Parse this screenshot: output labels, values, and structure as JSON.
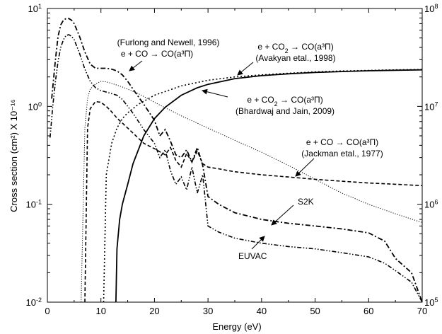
{
  "chart_data": {
    "type": "line",
    "xlabel": "Energy (eV)",
    "ylabel": "Cross section (cm²) X 10⁻¹⁶",
    "xlim": [
      0,
      70
    ],
    "ylim": [
      0.01,
      10
    ],
    "y_scale": "log",
    "y2lim": [
      100000,
      100000000
    ],
    "y2_scale": "log",
    "grid": false,
    "x_ticks": [
      "0",
      "10",
      "20",
      "30",
      "40",
      "50",
      "60",
      "70"
    ],
    "y_ticks": [
      {
        "base": "10",
        "exp": "-2",
        "value": 0.01
      },
      {
        "base": "10",
        "exp": "-1",
        "value": 0.1
      },
      {
        "base": "10",
        "exp": "0",
        "value": 1
      },
      {
        "base": "10",
        "exp": "1",
        "value": 10
      }
    ],
    "y2_ticks": [
      {
        "base": "10",
        "exp": "5",
        "value": 100000
      },
      {
        "base": "10",
        "exp": "6",
        "value": 1000000
      },
      {
        "base": "10",
        "exp": "7",
        "value": 10000000
      },
      {
        "base": "10",
        "exp": "8",
        "value": 100000000
      }
    ],
    "series": [
      {
        "label_lines": [
          "(Furlong and Newell, 1996)",
          "e + CO → CO(a³Π)"
        ],
        "style": "dotted-fine",
        "x": [
          6.3,
          7,
          7.5,
          8,
          9,
          10,
          11,
          12,
          14,
          17,
          20,
          25,
          30,
          35,
          40,
          45,
          50,
          55,
          60,
          65,
          70
        ],
        "y": [
          0.01,
          0.6,
          1.2,
          1.5,
          1.7,
          1.8,
          1.78,
          1.72,
          1.58,
          1.35,
          1.1,
          0.8,
          0.6,
          0.45,
          0.34,
          0.25,
          0.18,
          0.13,
          0.1,
          0.08,
          0.065
        ]
      },
      {
        "label_lines": [
          "e + CO₂ → CO(a³Π)",
          "(Avakyan etal., 1998)"
        ],
        "style": "dotted",
        "x": [
          10.5,
          11,
          12,
          13,
          14,
          15,
          17,
          20,
          25,
          30,
          35,
          40,
          45,
          50,
          55,
          60,
          65,
          70
        ],
        "y": [
          0.01,
          0.2,
          0.42,
          0.6,
          0.75,
          0.86,
          1.05,
          1.3,
          1.62,
          1.85,
          2.0,
          2.1,
          2.18,
          2.25,
          2.3,
          2.33,
          2.36,
          2.38
        ]
      },
      {
        "label_lines": [
          "e + CO₂ → CO(a³Π)",
          "(Bhardwaj and Jain, 2009)"
        ],
        "style": "solid",
        "x": [
          12.8,
          13,
          13.5,
          14,
          15,
          16,
          18,
          20,
          22,
          25,
          28,
          30,
          35,
          40,
          45,
          50,
          55,
          60,
          65,
          70
        ],
        "y": [
          0.01,
          0.035,
          0.07,
          0.1,
          0.16,
          0.26,
          0.5,
          0.75,
          0.98,
          1.3,
          1.55,
          1.68,
          1.92,
          2.06,
          2.15,
          2.22,
          2.27,
          2.31,
          2.34,
          2.36
        ]
      },
      {
        "label_lines": [
          "e + CO → CO(a³Π)",
          "(Jackman etal., 1977)"
        ],
        "style": "dashed",
        "x": [
          7,
          7.5,
          8,
          9,
          10,
          11,
          12,
          13,
          15,
          18,
          20,
          22,
          23,
          24,
          25,
          26,
          27,
          28,
          29,
          30,
          32,
          35,
          40,
          45,
          50,
          55,
          60,
          65,
          70
        ],
        "y": [
          0.01,
          0.6,
          0.95,
          1.12,
          1.1,
          1.0,
          0.88,
          0.76,
          0.6,
          0.42,
          0.37,
          0.32,
          0.38,
          0.28,
          0.24,
          0.33,
          0.27,
          0.35,
          0.26,
          0.24,
          0.23,
          0.215,
          0.2,
          0.19,
          0.18,
          0.172,
          0.165,
          0.16,
          0.155
        ]
      },
      {
        "name": "S2K",
        "style": "dash-dot",
        "x": [
          0.8,
          1.5,
          2,
          2.5,
          3,
          3.5,
          4,
          4.5,
          5,
          6,
          7,
          8,
          9,
          10,
          11,
          12,
          13,
          14,
          15,
          16,
          18,
          20,
          21,
          22,
          23,
          24,
          25,
          26,
          27,
          28,
          29,
          30,
          32,
          35,
          40,
          45,
          50,
          55,
          60,
          63,
          65,
          68,
          70
        ],
        "y": [
          1.2,
          3.0,
          5.2,
          6.8,
          7.6,
          7.9,
          7.9,
          7.6,
          7.0,
          5.2,
          3.6,
          2.7,
          2.45,
          2.45,
          2.45,
          2.4,
          2.3,
          2.1,
          1.8,
          1.5,
          1.05,
          0.72,
          0.5,
          0.58,
          0.44,
          0.32,
          0.3,
          0.36,
          0.27,
          0.38,
          0.25,
          0.12,
          0.1,
          0.082,
          0.07,
          0.064,
          0.06,
          0.056,
          0.051,
          0.042,
          0.028,
          0.02,
          0.01
        ]
      },
      {
        "name": "EUVAC",
        "style": "dash-dot-dot",
        "x": [
          0.5,
          1,
          1.5,
          2,
          2.5,
          3,
          3.5,
          4,
          4.5,
          5,
          6,
          7,
          8,
          9,
          10,
          11,
          12,
          13,
          14,
          15,
          16,
          18,
          20,
          21,
          22,
          23,
          24,
          25,
          26,
          27,
          28,
          29,
          30,
          32,
          35,
          40,
          45,
          50,
          55,
          60,
          63,
          65,
          68,
          70
        ],
        "y": [
          0.48,
          1.0,
          1.8,
          2.9,
          4.0,
          4.8,
          5.3,
          5.4,
          5.2,
          4.8,
          3.5,
          2.4,
          1.8,
          1.55,
          1.45,
          1.4,
          1.35,
          1.3,
          1.18,
          1.0,
          0.85,
          0.58,
          0.42,
          0.3,
          0.36,
          0.22,
          0.16,
          0.19,
          0.14,
          0.24,
          0.13,
          0.2,
          0.06,
          0.052,
          0.045,
          0.04,
          0.037,
          0.035,
          0.032,
          0.029,
          0.025,
          0.021,
          0.016,
          0.01
        ]
      }
    ]
  }
}
